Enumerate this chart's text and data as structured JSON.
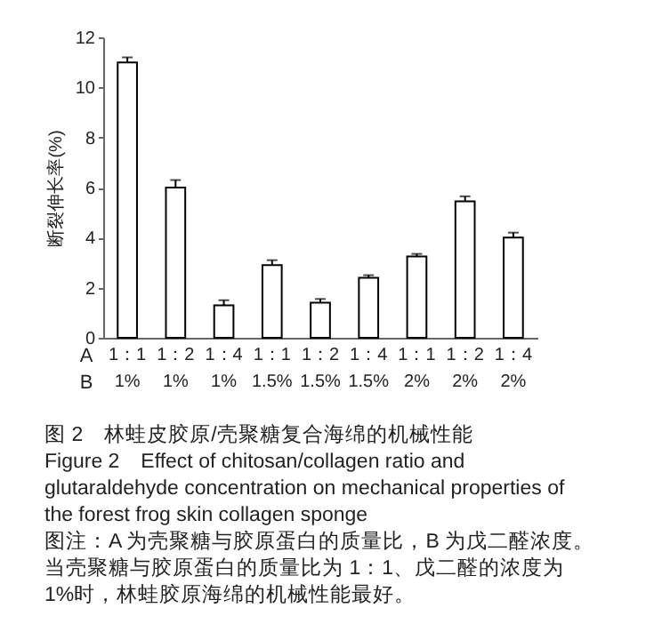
{
  "chart_data": {
    "type": "bar",
    "title": "图 2　林蛙皮胶原/壳聚糖复合海绵的机械性能",
    "subtitle": "Figure 2　Effect of chitosan/collagen ratio and glutaraldehyde concentration on mechanical properties of the forest frog skin collagen sponge",
    "annotations": [
      "图注：A 为壳聚糖与胶原蛋白的质量比，B 为戊二醛浓度。当壳聚糖与胶原蛋白的质量比为 1：1、戊二醛的浓度为 1%时，林蛙胶原海绵的机械性能最好。"
    ],
    "xlabel": "A\nB",
    "ylabel": "断裂伸长率(%)",
    "categories": [
      "1：1\n1%",
      "1：2\n1%",
      "1：4\n1%",
      "1：1\n1.5%",
      "1：2\n1.5%",
      "1：4\n1.5%",
      "1：1\n2%",
      "1：2\n2%",
      "1：4\n2%"
    ],
    "values": [
      11.0,
      6.0,
      1.3,
      2.9,
      1.4,
      2.4,
      3.25,
      5.45,
      4.0
    ],
    "errors": [
      [
        11.0,
        11.2
      ],
      [
        6.0,
        6.3
      ],
      [
        1.3,
        1.5
      ],
      [
        2.9,
        3.1
      ],
      [
        1.4,
        1.55
      ],
      [
        2.4,
        2.5
      ],
      [
        3.25,
        3.35
      ],
      [
        5.45,
        5.65
      ],
      [
        4.0,
        4.2
      ]
    ],
    "color": "#ffffff",
    "ylim": [
      0,
      12
    ],
    "yticks": [
      0,
      2,
      4,
      6,
      8,
      10,
      12
    ]
  }
}
